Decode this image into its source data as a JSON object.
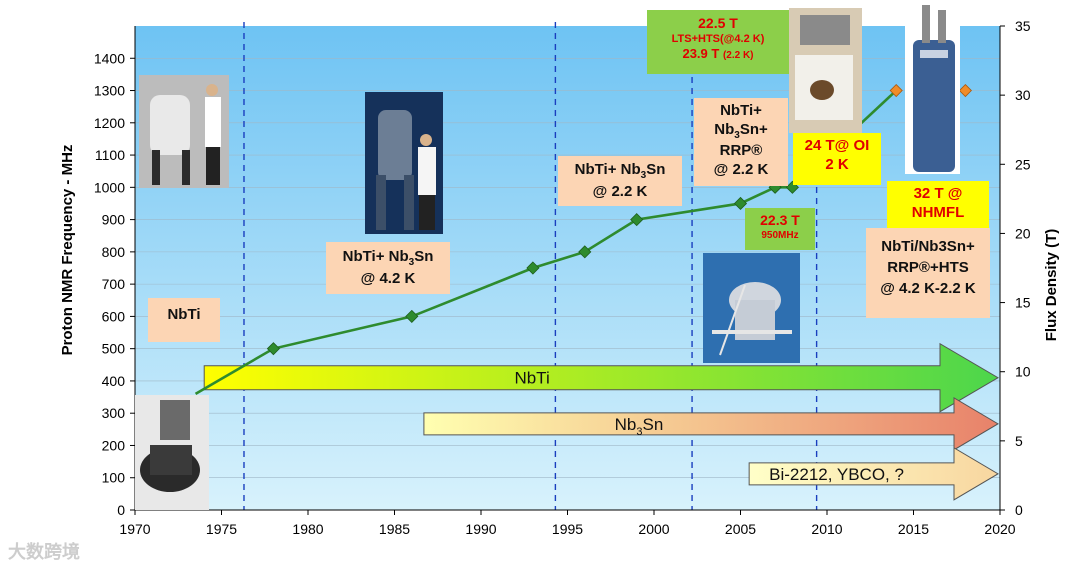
{
  "chart_data": {
    "type": "line",
    "title": "",
    "xlabel": "",
    "ylabel": "Proton NMR Frequency - MHz",
    "y2label": "Flux Density  (T)",
    "xlim": [
      1970,
      2020
    ],
    "ylim": [
      0,
      1500
    ],
    "y2lim": [
      0,
      35
    ],
    "x_ticks": [
      "1970",
      "1975",
      "1980",
      "1985",
      "1990",
      "1995",
      "2000",
      "2005",
      "2010",
      "2015",
      "2020"
    ],
    "y_ticks": [
      "0",
      "100",
      "200",
      "300",
      "400",
      "500",
      "600",
      "700",
      "800",
      "900",
      "1000",
      "1100",
      "1200",
      "1300",
      "1400"
    ],
    "y2_ticks": [
      "0",
      "5",
      "10",
      "15",
      "20",
      "25",
      "30",
      "35"
    ],
    "grid": "horizontal",
    "vertical_dashed_lines": [
      1976.3,
      1994.3,
      2002.2,
      2009.4
    ],
    "series": [
      {
        "name": "",
        "color": "#2e8b2e",
        "points": [
          {
            "x": 1973.5,
            "y": 360,
            "marker": false
          },
          {
            "x": 1978,
            "y": 500
          },
          {
            "x": 1986,
            "y": 600
          },
          {
            "x": 1993,
            "y": 750
          },
          {
            "x": 1996,
            "y": 800
          },
          {
            "x": 1999,
            "y": 900
          },
          {
            "x": 2005,
            "y": 950
          },
          {
            "x": 2007,
            "y": 1000
          },
          {
            "x": 2008,
            "y": 1000
          },
          {
            "x": 2014,
            "y": 1300,
            "marker_color": "#f08c28"
          },
          {
            "x": 2018,
            "y": 1300,
            "marker_color": "#f08c28",
            "no_line": true
          }
        ]
      }
    ],
    "arrows": [
      {
        "label": "NbTi",
        "x_start": 1974,
        "x_end": 2020,
        "y_center": 410
      },
      {
        "label_main": "Nb",
        "label_sub": "3",
        "label_tail": "Sn",
        "x_start": 1986.7,
        "x_end": 2020,
        "y_center": 267
      },
      {
        "label": "Bi-2212, YBCO, ?",
        "x_start": 2005.5,
        "x_end": 2020,
        "y_center": 112
      }
    ]
  },
  "annotations": {
    "nbti": "NbTi",
    "nbti_nb3sn_42_a": "NbTi+ Nb",
    "nbti_nb3sn_42_sub": "3",
    "nbti_nb3sn_42_b": "Sn",
    "nbti_nb3sn_42_c": "@ 4.2 K",
    "nbti_nb3sn_22_a": "NbTi+ Nb",
    "nbti_nb3sn_22_sub": "3",
    "nbti_nb3sn_22_b": "Sn",
    "nbti_nb3sn_22_c": "@ 2.2 K",
    "rrp_l1": "NbTi+",
    "rrp_l2a": "Nb",
    "rrp_l2sub": "3",
    "rrp_l2b": "Sn+",
    "rrp_l3": "RRP®",
    "rrp_l4": "@ 2.2 K",
    "green_top_l1": "22.5 T",
    "green_top_l2": "LTS+HTS(@4.2 K)",
    "green_top_l3": "23.9 T",
    "green_top_l3b": "(2.2 K)",
    "green_mid_l1": "22.3 T",
    "green_mid_l2": "950MHz",
    "oi_l1": "24 T@ OI",
    "oi_l2": "2 K",
    "nhmfl_l1": "32 T  @",
    "nhmfl_l2": "NHMFL",
    "hts_l1": "NbTi/Nb3Sn+",
    "hts_l2": "RRP®+HTS",
    "hts_l3": "@ 4.2 K-2.2 K"
  },
  "colors": {
    "plot_background_top": "#7dc8f5",
    "plot_background_bottom": "#d6f0fb",
    "line": "#2e8b2e",
    "marker": "#2e8b2e",
    "marker_highlight": "#f08c28",
    "dashed": "#1a3fbf"
  },
  "watermark": "大数跨境"
}
